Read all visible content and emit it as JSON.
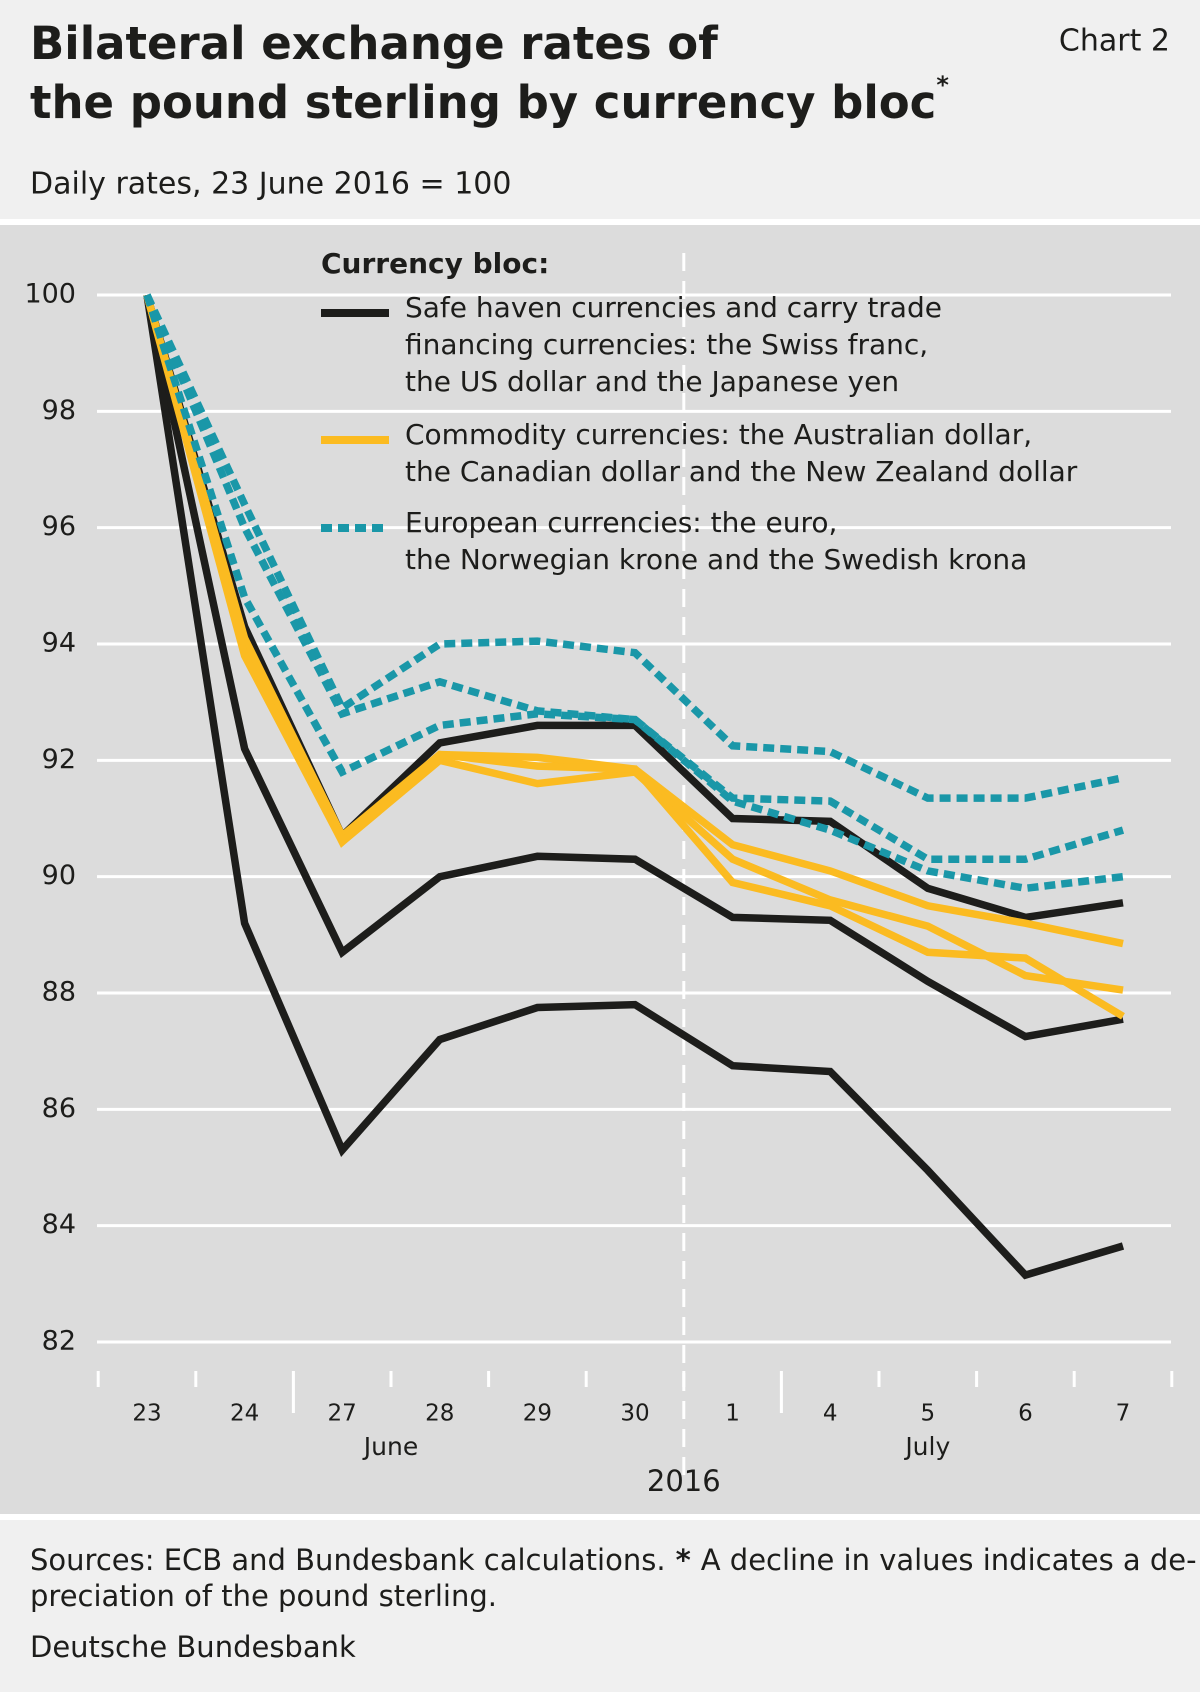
{
  "chart_data": {
    "type": "line",
    "title": [
      "Bilateral exchange rates of",
      "the pound sterling by currency bloc"
    ],
    "title_mark": "*",
    "chart_label": "Chart 2",
    "subtitle": "Daily rates, 23 June 2016 = 100",
    "categories": [
      "23",
      "24",
      "27",
      "28",
      "29",
      "30",
      "1",
      "4",
      "5",
      "6",
      "7"
    ],
    "months": [
      "June",
      "July"
    ],
    "year": "2016",
    "ylim": [
      82,
      100
    ],
    "yticks": [
      82,
      84,
      86,
      88,
      90,
      92,
      94,
      96,
      98,
      100
    ],
    "grid": true,
    "legend_title": "Currency bloc:",
    "groups": [
      {
        "name": [
          "Safe haven currencies and carry trade",
          "financing currencies: the Swiss franc,",
          "the US dollar and the Japanese yen"
        ],
        "color": "#1d1d1b",
        "dashed": false,
        "series": [
          {
            "values": [
              100,
              94.3,
              90.7,
              92.3,
              92.6,
              92.6,
              91.0,
              90.95,
              89.8,
              89.3,
              89.55
            ]
          },
          {
            "values": [
              100,
              92.2,
              88.7,
              90.0,
              90.35,
              90.3,
              89.3,
              89.25,
              88.2,
              87.25,
              87.55
            ]
          },
          {
            "values": [
              100,
              89.2,
              85.3,
              87.2,
              87.75,
              87.8,
              86.75,
              86.65,
              84.95,
              83.15,
              83.65
            ]
          }
        ]
      },
      {
        "name": [
          "Commodity currencies: the Australian dollar,",
          "the Canadian dollar and the New Zealand dollar"
        ],
        "color": "#fbbb21",
        "dashed": false,
        "series": [
          {
            "values": [
              100,
              94.1,
              90.7,
              92.1,
              92.05,
              91.85,
              90.55,
              90.1,
              89.5,
              89.2,
              88.85
            ]
          },
          {
            "values": [
              100,
              94.0,
              90.6,
              92.0,
              91.6,
              91.8,
              90.3,
              89.6,
              89.15,
              88.3,
              88.05
            ]
          },
          {
            "values": [
              100,
              93.8,
              90.6,
              92.1,
              91.9,
              91.85,
              89.9,
              89.5,
              88.7,
              88.6,
              87.6
            ]
          }
        ]
      },
      {
        "name": [
          "European currencies: the euro,",
          "the Norwegian krone and the Swedish krona"
        ],
        "color": "#1a97a8",
        "dashed": true,
        "series": [
          {
            "values": [
              100,
              96.4,
              92.9,
              94.0,
              94.05,
              93.85,
              92.25,
              92.15,
              91.35,
              91.35,
              91.7
            ]
          },
          {
            "values": [
              100,
              96.0,
              92.8,
              93.35,
              92.85,
              92.7,
              91.35,
              91.3,
              90.3,
              90.3,
              90.8
            ]
          },
          {
            "values": [
              100,
              94.8,
              91.8,
              92.6,
              92.8,
              92.7,
              91.3,
              90.8,
              90.1,
              89.8,
              90.0
            ]
          }
        ]
      }
    ],
    "footnote": {
      "sources": "Sources: ECB and Bundesbank calculations.",
      "mark": "*",
      "lines": [
        "A decline in values indicates a de-",
        "preciation of the pound sterling."
      ]
    },
    "publisher": "Deutsche Bundesbank"
  }
}
